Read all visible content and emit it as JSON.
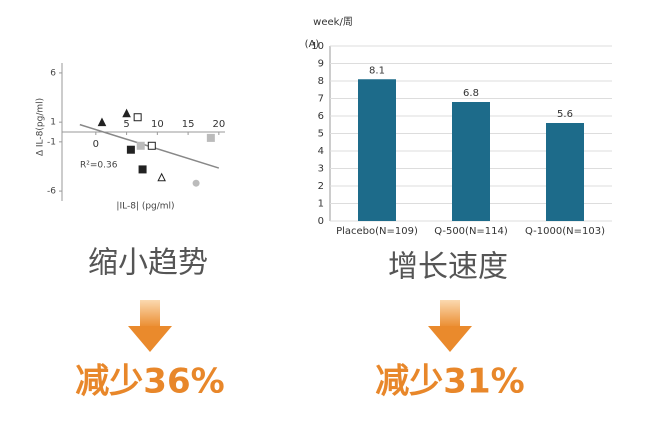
{
  "chart_data": [
    {
      "type": "scatter",
      "y_label": "Δ IL-8(pg/ml)",
      "x_label": "|IL-8| (pg/ml)",
      "annotation": "R²=0.36",
      "x": [
        1,
        5,
        6.8,
        5.7,
        9.1,
        7.3,
        7.6,
        10.7,
        16.3,
        18.7
      ],
      "y": [
        1.0,
        1.9,
        1.5,
        -1.8,
        -1.4,
        -1.4,
        -3.8,
        -4.6,
        -5.2,
        -0.6
      ],
      "markers": [
        "triangle",
        "triangle",
        "square-open",
        "square",
        "square-open",
        "square",
        "square",
        "triangle-open",
        "circle",
        "square"
      ],
      "colors": [
        "#222",
        "#222",
        "#222",
        "#222",
        "#222",
        "#bbb",
        "#222",
        "#222",
        "#bbb",
        "#bbb"
      ],
      "trendline": {
        "x": [
          -2.6,
          20
        ],
        "y": [
          0.75,
          -3.66
        ],
        "color": "#888"
      },
      "xlim": [
        -5.5,
        21
      ],
      "xticks": [
        0,
        5,
        10,
        15,
        20
      ],
      "ylim": [
        -6.5,
        6.5
      ],
      "yticks": [
        6,
        1,
        -1,
        -6
      ],
      "caption": "缩小趋势",
      "result": "减少36%"
    },
    {
      "type": "bar",
      "title": "week/周",
      "y_label": "(A)",
      "categories": [
        "Placebo(N=109)",
        "Q-500(N=114)",
        "Q-1000(N=103)"
      ],
      "values": [
        8.1,
        6.8,
        5.6
      ],
      "color": "#1d6b8a",
      "ylim": [
        0,
        10
      ],
      "yticks": [
        0,
        1,
        2,
        3,
        4,
        5,
        6,
        7,
        8,
        9,
        10
      ],
      "grid": true,
      "caption": "增长速度",
      "result": "减少31%"
    }
  ]
}
